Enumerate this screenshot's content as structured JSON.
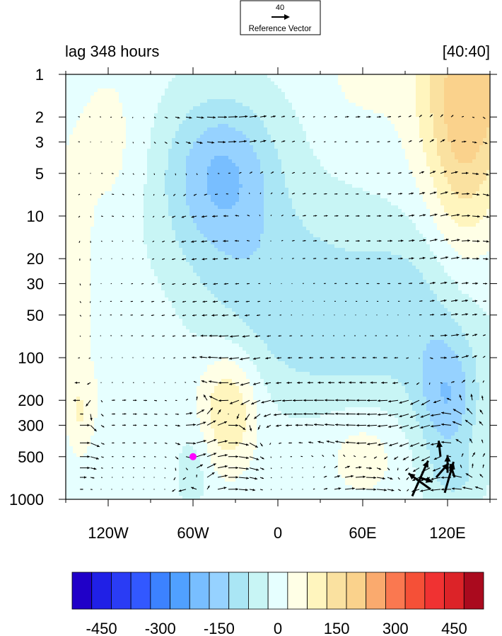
{
  "chart_data": {
    "type": "heatmap",
    "title_left": "lag 348 hours",
    "title_right": "[40:40]",
    "reference_vector": {
      "magnitude": "40",
      "label": "Reference Vector"
    },
    "x_axis": {
      "range": [
        -150,
        150
      ],
      "ticks": [
        -120,
        -60,
        0,
        60,
        120
      ],
      "tick_labels": [
        "120W",
        "60W",
        "0",
        "60E",
        "120E"
      ]
    },
    "y_axis": {
      "scale": "log",
      "inverted": true,
      "range": [
        1,
        1000
      ],
      "ticks": [
        1,
        2,
        3,
        5,
        10,
        20,
        30,
        50,
        100,
        200,
        300,
        500,
        1000
      ],
      "tick_labels": [
        "1",
        "2",
        "3",
        "5",
        "10",
        "20",
        "30",
        "50",
        "100",
        "200",
        "300",
        "500",
        "1000"
      ]
    },
    "colorbar": {
      "levels": [
        -500,
        -450,
        -400,
        -350,
        -300,
        -250,
        -200,
        -150,
        -100,
        -50,
        0,
        50,
        100,
        150,
        200,
        250,
        300,
        350,
        400,
        450,
        500
      ],
      "colors": [
        "#2000c8",
        "#2020e6",
        "#2a3cf5",
        "#3258ff",
        "#3c82ff",
        "#50a0ff",
        "#78beff",
        "#96d2ff",
        "#aae6f5",
        "#c8f5f5",
        "#e6ffff",
        "#ffffe6",
        "#fff5be",
        "#fae1a0",
        "#fad28c",
        "#faaa6e",
        "#fa7850",
        "#f55037",
        "#f03232",
        "#dc2328",
        "#aa0a1e"
      ],
      "labels": [
        "-450",
        "-300",
        "-150",
        "0",
        "150",
        "300",
        "450"
      ],
      "label_values": [
        -450,
        -300,
        -150,
        0,
        150,
        300,
        450
      ]
    },
    "field_blobs": [
      {
        "lon": -40,
        "p": 5,
        "rlon": 40,
        "rlogp": 0.55,
        "amp": -170
      },
      {
        "lon": 0,
        "p": 30,
        "rlon": 70,
        "rlogp": 0.6,
        "amp": -90
      },
      {
        "lon": 100,
        "p": 40,
        "rlon": 50,
        "rlogp": 0.6,
        "amp": -80
      },
      {
        "lon": 40,
        "p": 100,
        "rlon": 60,
        "rlogp": 0.4,
        "amp": -45
      },
      {
        "lon": 120,
        "p": 200,
        "rlon": 22,
        "rlogp": 0.45,
        "amp": -150
      },
      {
        "lon": 140,
        "p": 1,
        "rlon": 45,
        "rlogp": 0.8,
        "amp": 170
      },
      {
        "lon": 130,
        "p": 5,
        "rlon": 25,
        "rlogp": 0.9,
        "amp": 100
      },
      {
        "lon": 60,
        "p": 1,
        "rlon": 25,
        "rlogp": 0.3,
        "amp": 50
      },
      {
        "lon": -145,
        "p": 20,
        "rlon": 12,
        "rlogp": 0.7,
        "amp": 75
      },
      {
        "lon": -120,
        "p": 3,
        "rlon": 25,
        "rlogp": 0.6,
        "amp": 50
      },
      {
        "lon": -140,
        "p": 250,
        "rlon": 10,
        "rlogp": 0.3,
        "amp": 75
      },
      {
        "lon": -35,
        "p": 230,
        "rlon": 20,
        "rlogp": 0.42,
        "amp": 140
      },
      {
        "lon": -100,
        "p": 100,
        "rlon": 40,
        "rlogp": 0.5,
        "amp": 35
      },
      {
        "lon": 60,
        "p": 500,
        "rlon": 25,
        "rlogp": 0.3,
        "amp": 60
      },
      {
        "lon": -60,
        "p": 600,
        "rlon": 12,
        "rlogp": 0.3,
        "amp": -50
      },
      {
        "lon": 125,
        "p": 700,
        "rlon": 20,
        "rlogp": 0.2,
        "amp": -60
      }
    ],
    "marker": {
      "lon": -60,
      "p": 500,
      "color": "#ff00ff"
    },
    "large_vectors": [
      {
        "lon": 95,
        "p": 950,
        "u": 18,
        "v": -40
      },
      {
        "lon": 108,
        "p": 850,
        "u": -25,
        "v": -18
      },
      {
        "lon": 112,
        "p": 700,
        "u": 14,
        "v": -16
      },
      {
        "lon": 118,
        "p": 900,
        "u": 10,
        "v": -35
      },
      {
        "lon": 125,
        "p": 700,
        "u": -5,
        "v": -15
      },
      {
        "lon": 120,
        "p": 650,
        "u": 0,
        "v": -20
      },
      {
        "lon": 115,
        "p": 500,
        "u": -2,
        "v": -18
      },
      {
        "lon": 100,
        "p": 700,
        "u": 15,
        "v": 5
      }
    ]
  }
}
